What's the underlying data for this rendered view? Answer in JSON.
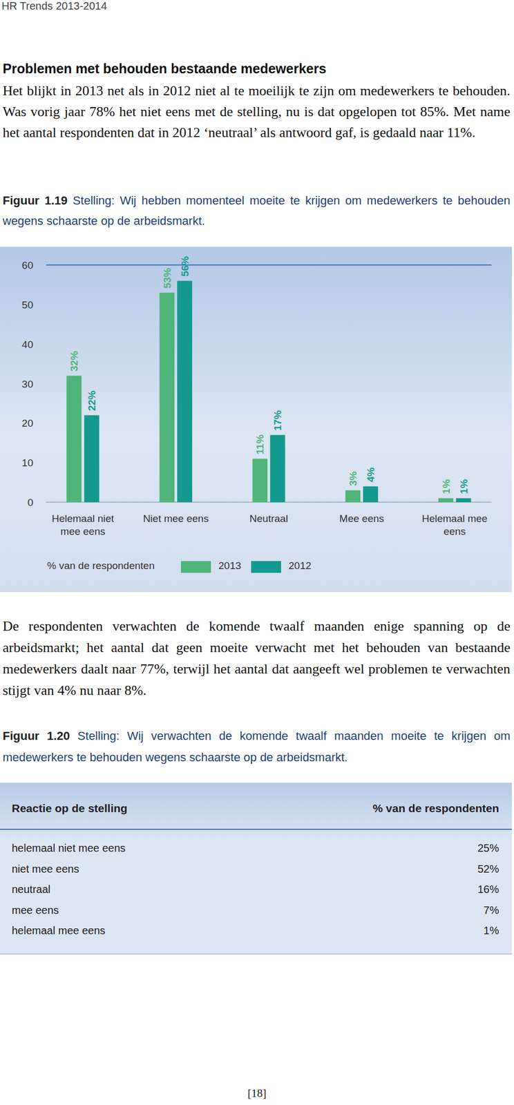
{
  "header": {
    "running_title": "HR Trends 2013-2014",
    "page_number": "[18]"
  },
  "section": {
    "title": "Problemen met behouden bestaande medewerkers",
    "paragraph_1": "Het blijkt in 2013 net als in 2012 niet al te moeilijk te zijn om medewerkers te behouden. Was vorig jaar 78% het niet eens met de stelling, nu is dat opgelopen tot 85%. Met name het aantal respondenten dat in 2012 ‘neutraal’ als antwoord gaf, is gedaald naar 11%.",
    "paragraph_2": "De respondenten verwachten de komende twaalf maanden enige spanning op de arbeidsmarkt; het aantal dat geen moeite verwacht met het behouden van bestaande medewerkers daalt naar 77%, terwijl het aantal dat aangeeft wel problemen te verwachten stijgt van 4% nu naar 8%."
  },
  "figure_1_19": {
    "label": "Figuur 1.19"
  },
  "chart_data": {
    "type": "bar",
    "title": "Stelling: Wij hebben momenteel moeite te krijgen om medewerkers te behouden wegens schaarste op de arbeidsmarkt.",
    "ylabel": "% van de respondenten",
    "categories": [
      "Helemaal niet mee eens",
      "Niet mee eens",
      "Neutraal",
      "Mee eens",
      "Helemaal mee eens"
    ],
    "series": [
      {
        "name": "2013",
        "color": "#4fb47a",
        "values": [
          32,
          53,
          11,
          3,
          1
        ],
        "value_labels": [
          "32%",
          "53%",
          "11%",
          "3%",
          "1%"
        ]
      },
      {
        "name": "2012",
        "color": "#13998d",
        "values": [
          22,
          56,
          17,
          4,
          1
        ],
        "value_labels": [
          "22%",
          "56%",
          "17%",
          "4%",
          "1%"
        ]
      }
    ],
    "ylim": [
      0,
      60
    ],
    "yticks": [
      0,
      10,
      20,
      30,
      40,
      50,
      60
    ],
    "grid": false,
    "legend": "bottom",
    "data_labels": true
  },
  "figure_1_20": {
    "label": "Figuur 1.20",
    "caption": "Stelling: Wij verwachten de komende twaalf maanden moeite te krijgen om medewerkers te behouden wegens schaarste op de arbeidsmarkt.",
    "table": {
      "header": [
        "Reactie op de stelling",
        "% van de respondenten"
      ],
      "rows": [
        [
          "helemaal niet mee eens",
          "25%"
        ],
        [
          "niet mee eens",
          "52%"
        ],
        [
          "neutraal",
          "16%"
        ],
        [
          "mee eens",
          "7%"
        ],
        [
          "helemaal mee eens",
          "1%"
        ]
      ]
    }
  }
}
